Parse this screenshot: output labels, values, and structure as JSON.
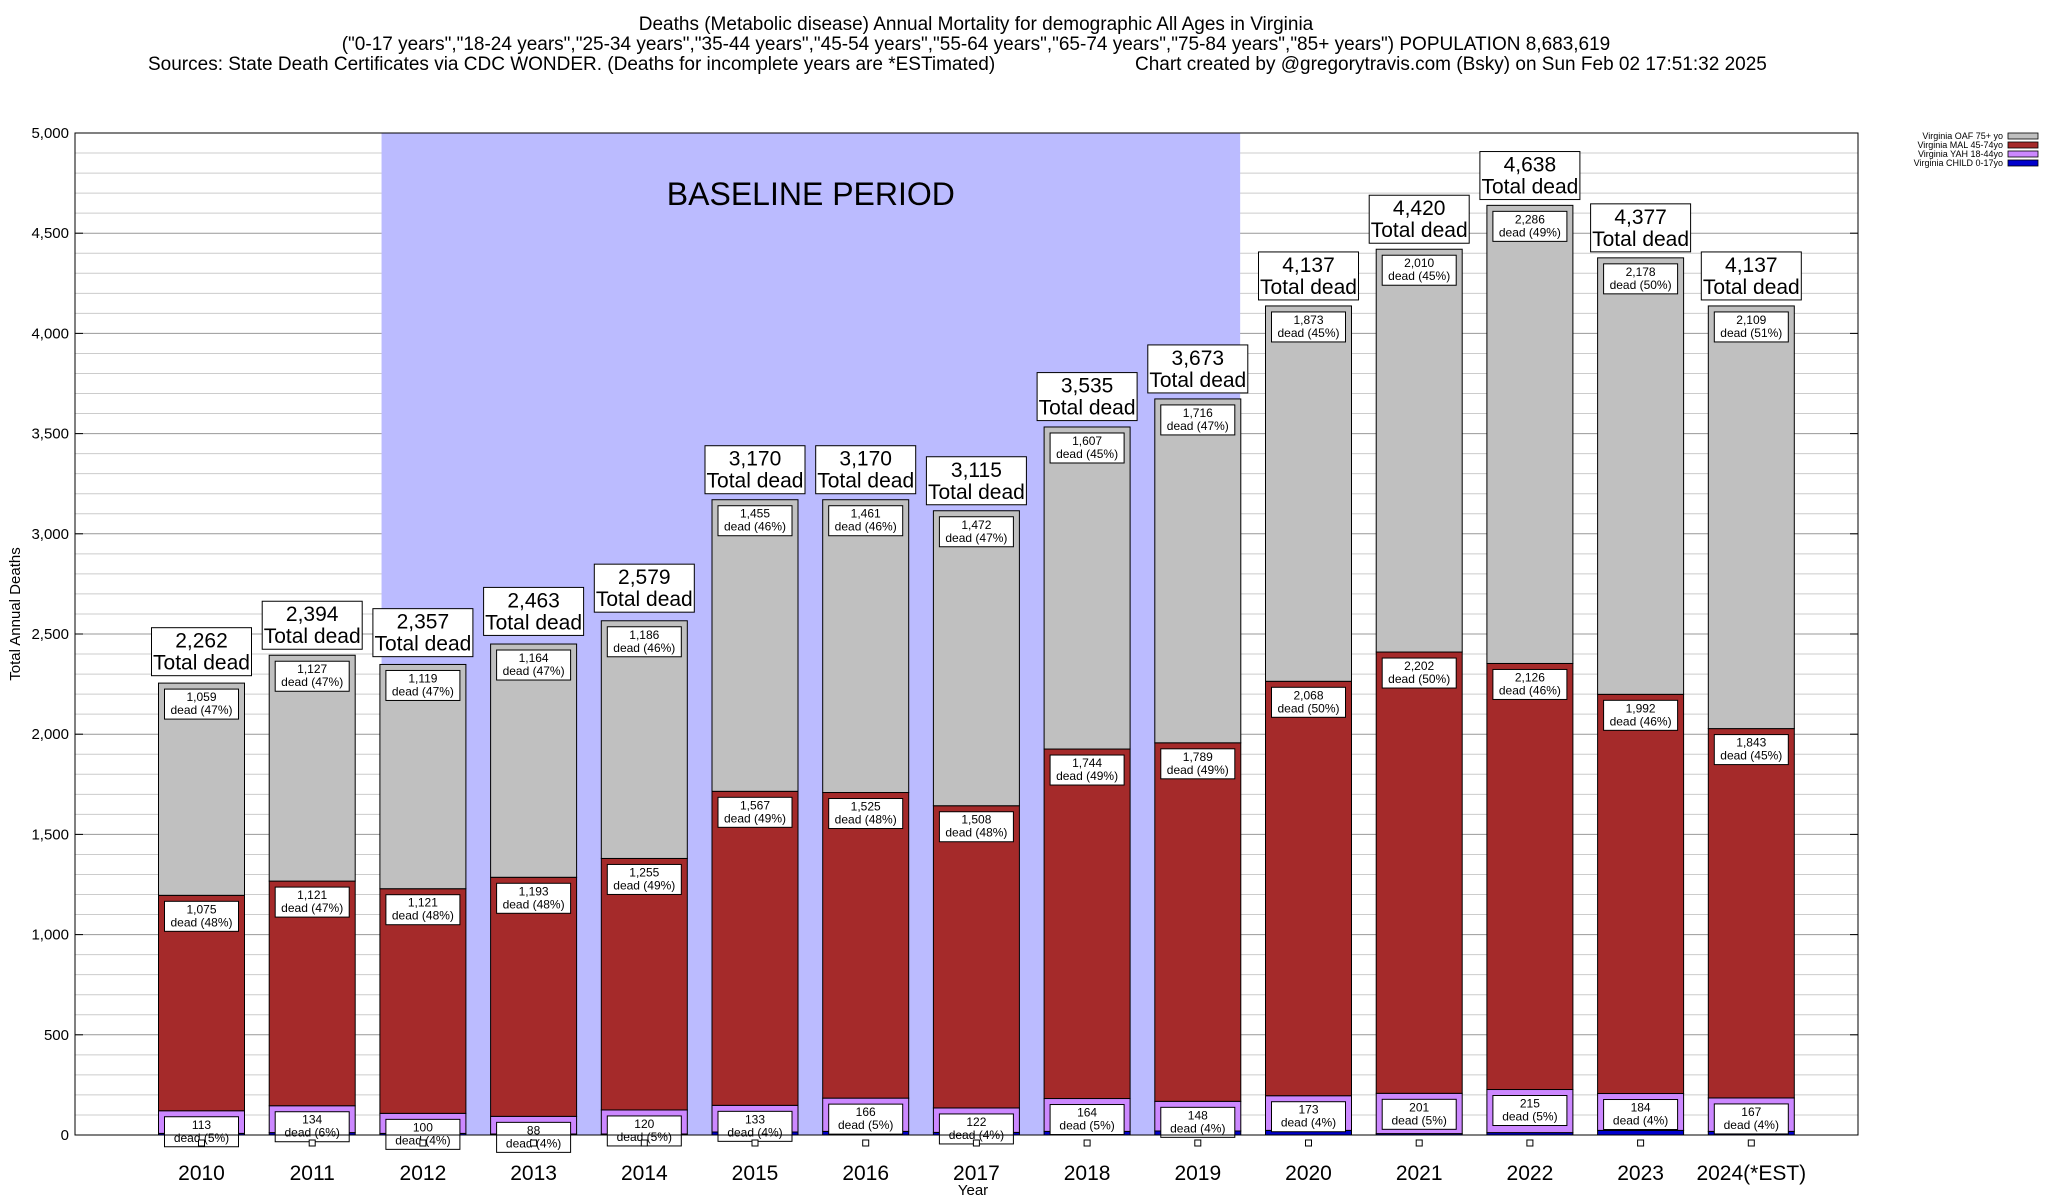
{
  "chart_data": {
    "type": "bar",
    "stacked": true,
    "title_lines": [
      "Deaths (Metabolic disease) Annual Mortality for demographic All Ages in Virginia",
      "(\"0-17 years\",\"18-24 years\",\"25-34 years\",\"35-44 years\",\"45-54 years\",\"55-64 years\",\"65-74 years\",\"75-84 years\",\"85+ years\") POPULATION 8,683,619",
      "Sources: State Death Certificates via CDC WONDER. (Deaths for incomplete years are *ESTimated)",
      "Chart created by @gregorytravis.com (Bsky) on Sun Feb 02 17:51:32 2025"
    ],
    "xlabel": "Year",
    "ylabel": "Total Annual Deaths",
    "ylim": [
      0,
      5000
    ],
    "yticks": [
      0,
      500,
      1000,
      1500,
      2000,
      2500,
      3000,
      3500,
      4000,
      4500,
      5000
    ],
    "ytick_labels": [
      "0",
      "500",
      "1,000",
      "1,500",
      "2,000",
      "2,500",
      "3,000",
      "3,500",
      "4,000",
      "4,500",
      "5,000"
    ],
    "grid": true,
    "legend_position": "top-right",
    "baseline_label": "BASELINE PERIOD",
    "baseline_range": [
      "2012",
      "2019"
    ],
    "total_suffix": "Total dead",
    "categories": [
      "2010",
      "2011",
      "2012",
      "2013",
      "2014",
      "2015",
      "2016",
      "2017",
      "2018",
      "2019",
      "2020",
      "2021",
      "2022",
      "2023",
      "2024(*EST)"
    ],
    "totals": [
      2262,
      2394,
      2357,
      2463,
      2579,
      3170,
      3170,
      3115,
      3535,
      3673,
      4137,
      4420,
      4638,
      4377,
      4137
    ],
    "total_labels": [
      "2,262",
      "2,394",
      "2,357",
      "2,463",
      "2,579",
      "3,170",
      "3,170",
      "3,115",
      "3,535",
      "3,673",
      "4,137",
      "4,420",
      "4,638",
      "4,377",
      "4,137"
    ],
    "series": [
      {
        "name": "Virginia CHILD 0-17yo",
        "color": "#0000cc",
        "values": [
          8,
          12,
          8,
          5,
          5,
          15,
          18,
          13,
          18,
          20,
          23,
          7,
          12,
          23,
          18
        ]
      },
      {
        "name": "Virginia YAH 18-44yo",
        "color": "#cc88ff",
        "values": [
          113,
          134,
          100,
          88,
          120,
          133,
          166,
          122,
          164,
          148,
          173,
          201,
          215,
          184,
          167
        ],
        "labels": [
          "113",
          "134",
          "100",
          "88",
          "120",
          "133",
          "166",
          "122",
          "164",
          "148",
          "173",
          "201",
          "215",
          "184",
          "167"
        ],
        "pcts": [
          "dead (5%)",
          "dead (6%)",
          "dead (4%)",
          "dead (4%)",
          "dead (5%)",
          "dead (4%)",
          "dead (5%)",
          "dead (4%)",
          "dead (5%)",
          "dead (4%)",
          "dead (4%)",
          "dead (5%)",
          "dead (5%)",
          "dead (4%)",
          "dead (4%)"
        ]
      },
      {
        "name": "Virginia MAL 45-74yo",
        "color": "#a52a2a",
        "values": [
          1075,
          1121,
          1121,
          1193,
          1255,
          1567,
          1525,
          1508,
          1744,
          1789,
          2068,
          2202,
          2126,
          1992,
          1843
        ],
        "labels": [
          "1,075",
          "1,121",
          "1,121",
          "1,193",
          "1,255",
          "1,567",
          "1,525",
          "1,508",
          "1,744",
          "1,789",
          "2,068",
          "2,202",
          "2,126",
          "1,992",
          "1,843"
        ],
        "pcts": [
          "dead (48%)",
          "dead (47%)",
          "dead (48%)",
          "dead (48%)",
          "dead (49%)",
          "dead (49%)",
          "dead (48%)",
          "dead (48%)",
          "dead (49%)",
          "dead (49%)",
          "dead (50%)",
          "dead (50%)",
          "dead (46%)",
          "dead (46%)",
          "dead (45%)"
        ]
      },
      {
        "name": "Virginia OAF 75+ yo",
        "color": "#c0c0c0",
        "values": [
          1059,
          1127,
          1119,
          1164,
          1186,
          1455,
          1461,
          1472,
          1607,
          1716,
          1873,
          2010,
          2286,
          2178,
          2109
        ],
        "labels": [
          "1,059",
          "1,127",
          "1,119",
          "1,164",
          "1,186",
          "1,455",
          "1,461",
          "1,472",
          "1,607",
          "1,716",
          "1,873",
          "2,010",
          "2,286",
          "2,178",
          "2,109"
        ],
        "pcts": [
          "dead (47%)",
          "dead (47%)",
          "dead (47%)",
          "dead (47%)",
          "dead (46%)",
          "dead (46%)",
          "dead (46%)",
          "dead (47%)",
          "dead (45%)",
          "dead (47%)",
          "dead (45%)",
          "dead (45%)",
          "dead (49%)",
          "dead (50%)",
          "dead (51%)"
        ]
      }
    ],
    "legend_order": [
      "Virginia OAF 75+ yo",
      "Virginia MAL 45-74yo",
      "Virginia YAH 18-44yo",
      "Virginia CHILD 0-17yo"
    ],
    "colors": {
      "baseline_shade": "#bbbbff",
      "grid": "#aaaaaa",
      "axis": "#000000"
    }
  }
}
